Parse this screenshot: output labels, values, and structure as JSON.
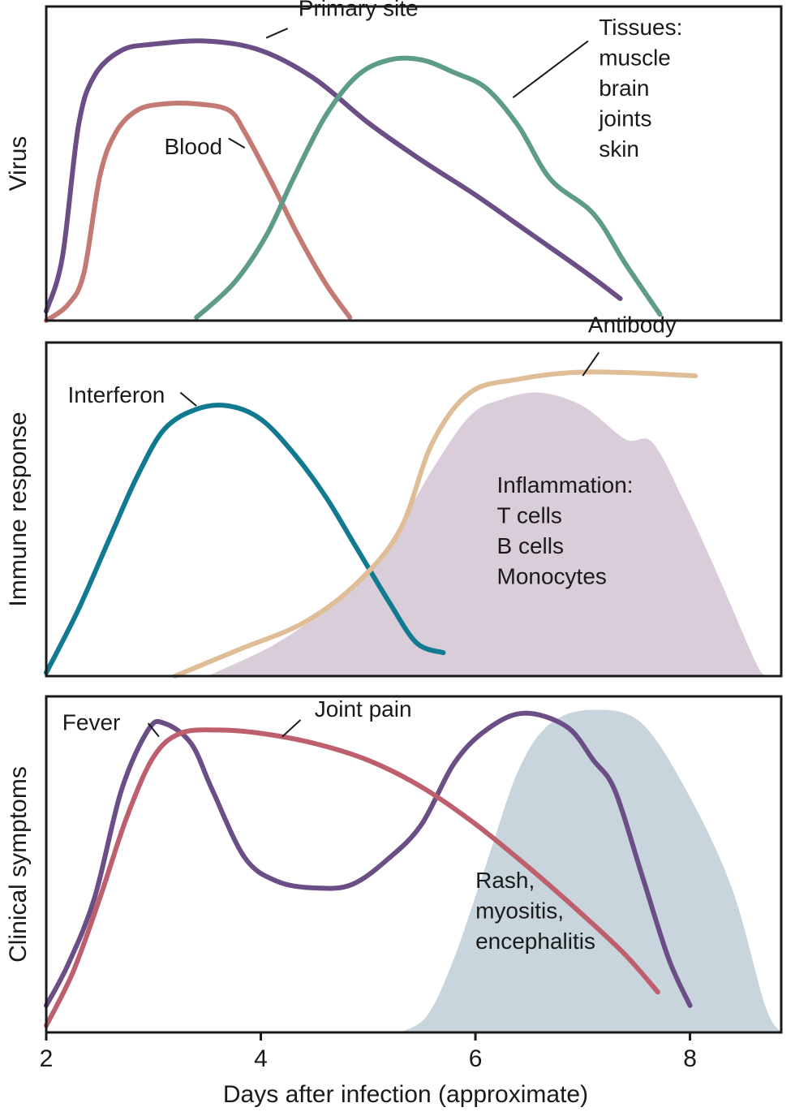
{
  "chart_data": {
    "type": "line",
    "xlabel": "Days after infection (approximate)",
    "x_ticks": [
      "2",
      "4",
      "6",
      "8"
    ],
    "xlim": [
      2,
      8.85
    ],
    "panels": [
      {
        "id": "virus",
        "ylabel": "Virus",
        "ylim": [
          0,
          1
        ],
        "series": [
          {
            "name": "Primary site",
            "color": "#6b4e86",
            "points": [
              [
                2.0,
                0.03
              ],
              [
                2.15,
                0.2
              ],
              [
                2.3,
                0.62
              ],
              [
                2.45,
                0.78
              ],
              [
                2.7,
                0.86
              ],
              [
                3.0,
                0.88
              ],
              [
                3.5,
                0.89
              ],
              [
                4.0,
                0.86
              ],
              [
                4.5,
                0.77
              ],
              [
                5.0,
                0.63
              ],
              [
                5.5,
                0.51
              ],
              [
                6.0,
                0.4
              ],
              [
                6.5,
                0.28
              ],
              [
                7.0,
                0.16
              ],
              [
                7.35,
                0.07
              ]
            ],
            "label": "Primary site",
            "label_anchor": [
              4.35,
              0.97
            ],
            "leader": [
              [
                4.05,
                0.9
              ],
              [
                4.25,
                0.93
              ]
            ]
          },
          {
            "name": "Blood",
            "color": "#c47a74",
            "points": [
              [
                2.0,
                0.0
              ],
              [
                2.2,
                0.05
              ],
              [
                2.35,
                0.15
              ],
              [
                2.5,
                0.46
              ],
              [
                2.65,
                0.6
              ],
              [
                2.85,
                0.67
              ],
              [
                3.1,
                0.69
              ],
              [
                3.4,
                0.69
              ],
              [
                3.7,
                0.67
              ],
              [
                3.85,
                0.6
              ],
              [
                4.1,
                0.44
              ],
              [
                4.35,
                0.27
              ],
              [
                4.6,
                0.12
              ],
              [
                4.83,
                0.01
              ]
            ],
            "label": "Blood",
            "label_anchor": [
              3.1,
              0.53
            ],
            "leader": [
              [
                3.85,
                0.55
              ],
              [
                3.7,
                0.58
              ]
            ]
          },
          {
            "name": "Tissues",
            "color": "#5e9c8a",
            "points": [
              [
                3.4,
                0.01
              ],
              [
                3.75,
                0.12
              ],
              [
                4.05,
                0.27
              ],
              [
                4.3,
                0.45
              ],
              [
                4.6,
                0.65
              ],
              [
                4.9,
                0.78
              ],
              [
                5.2,
                0.83
              ],
              [
                5.5,
                0.83
              ],
              [
                5.8,
                0.79
              ],
              [
                6.1,
                0.74
              ],
              [
                6.4,
                0.62
              ],
              [
                6.7,
                0.45
              ],
              [
                7.1,
                0.34
              ],
              [
                7.4,
                0.18
              ],
              [
                7.72,
                0.02
              ]
            ],
            "label": [
              "Tissues:",
              "muscle",
              "brain",
              "joints",
              "skin"
            ],
            "label_anchor": [
              7.15,
              0.91
            ],
            "leader": [
              [
                6.35,
                0.71
              ],
              [
                7.05,
                0.89
              ]
            ]
          }
        ]
      },
      {
        "id": "immune",
        "ylabel": "Immune response",
        "ylim": [
          0,
          1
        ],
        "series": [
          {
            "name": "Interferon",
            "color": "#117a91",
            "points": [
              [
                2.0,
                0.01
              ],
              [
                2.3,
                0.2
              ],
              [
                2.6,
                0.42
              ],
              [
                2.85,
                0.6
              ],
              [
                3.1,
                0.74
              ],
              [
                3.4,
                0.8
              ],
              [
                3.7,
                0.81
              ],
              [
                4.0,
                0.77
              ],
              [
                4.3,
                0.67
              ],
              [
                4.6,
                0.54
              ],
              [
                4.9,
                0.38
              ],
              [
                5.2,
                0.22
              ],
              [
                5.45,
                0.1
              ],
              [
                5.7,
                0.07
              ]
            ],
            "label": "Interferon",
            "label_anchor": [
              2.2,
              0.82
            ],
            "leader": [
              [
                3.4,
                0.81
              ],
              [
                3.25,
                0.85
              ]
            ]
          },
          {
            "name": "Antibody",
            "color": "#dfbe97",
            "points": [
              [
                3.2,
                0.0
              ],
              [
                3.8,
                0.08
              ],
              [
                4.4,
                0.16
              ],
              [
                4.9,
                0.28
              ],
              [
                5.3,
                0.44
              ],
              [
                5.6,
                0.7
              ],
              [
                5.95,
                0.85
              ],
              [
                6.4,
                0.89
              ],
              [
                6.9,
                0.91
              ],
              [
                7.4,
                0.91
              ],
              [
                8.05,
                0.9
              ]
            ],
            "label": "Antibody",
            "label_anchor": [
              7.05,
              1.03
            ],
            "leader": [
              [
                7.0,
                0.9
              ],
              [
                7.15,
                0.97
              ]
            ]
          },
          {
            "name": "Inflammation",
            "color": "#d9cdd9",
            "points": [
              [
                3.5,
                0.0
              ],
              [
                4.1,
                0.09
              ],
              [
                4.6,
                0.2
              ],
              [
                5.1,
                0.35
              ],
              [
                5.6,
                0.62
              ],
              [
                5.95,
                0.78
              ],
              [
                6.25,
                0.83
              ],
              [
                6.6,
                0.85
              ],
              [
                7.0,
                0.81
              ],
              [
                7.4,
                0.71
              ],
              [
                7.65,
                0.7
              ],
              [
                7.95,
                0.52
              ],
              [
                8.25,
                0.31
              ],
              [
                8.6,
                0.05
              ],
              [
                8.7,
                0.0
              ]
            ],
            "label": [
              "Inflammation:",
              "T cells",
              "B cells",
              "Monocytes"
            ],
            "label_anchor": [
              6.2,
              0.55
            ]
          }
        ]
      },
      {
        "id": "symptoms",
        "ylabel": "Clinical symptoms",
        "ylim": [
          0,
          1
        ],
        "series": [
          {
            "name": "Fever",
            "color": "#6b4e86",
            "points": [
              [
                2.0,
                0.08
              ],
              [
                2.2,
                0.2
              ],
              [
                2.45,
                0.4
              ],
              [
                2.7,
                0.72
              ],
              [
                2.95,
                0.9
              ],
              [
                3.1,
                0.92
              ],
              [
                3.35,
                0.86
              ],
              [
                3.55,
                0.72
              ],
              [
                3.85,
                0.52
              ],
              [
                4.15,
                0.45
              ],
              [
                4.5,
                0.43
              ],
              [
                4.85,
                0.44
              ],
              [
                5.2,
                0.52
              ],
              [
                5.5,
                0.62
              ],
              [
                5.8,
                0.8
              ],
              [
                6.1,
                0.9
              ],
              [
                6.45,
                0.95
              ],
              [
                6.85,
                0.91
              ],
              [
                7.1,
                0.81
              ],
              [
                7.3,
                0.72
              ],
              [
                7.55,
                0.47
              ],
              [
                7.8,
                0.22
              ],
              [
                8.0,
                0.08
              ]
            ],
            "label": "Fever",
            "label_anchor": [
              2.15,
              0.9
            ],
            "leader": [
              [
                3.05,
                0.88
              ],
              [
                2.95,
                0.92
              ]
            ]
          },
          {
            "name": "Joint pain",
            "color": "#bd5f6d",
            "points": [
              [
                2.0,
                0.02
              ],
              [
                2.25,
                0.18
              ],
              [
                2.5,
                0.4
              ],
              [
                2.75,
                0.64
              ],
              [
                3.0,
                0.82
              ],
              [
                3.25,
                0.89
              ],
              [
                3.6,
                0.9
              ],
              [
                4.0,
                0.89
              ],
              [
                4.5,
                0.86
              ],
              [
                5.0,
                0.81
              ],
              [
                5.5,
                0.73
              ],
              [
                6.0,
                0.62
              ],
              [
                6.5,
                0.49
              ],
              [
                7.0,
                0.35
              ],
              [
                7.4,
                0.23
              ],
              [
                7.7,
                0.12
              ]
            ],
            "label": "Joint pain",
            "label_anchor": [
              4.5,
              0.94
            ],
            "leader": [
              [
                4.2,
                0.88
              ],
              [
                4.37,
                0.93
              ]
            ]
          },
          {
            "name": "Rash",
            "color": "#c9d5dc",
            "points": [
              [
                5.3,
                0.0
              ],
              [
                5.55,
                0.05
              ],
              [
                5.8,
                0.22
              ],
              [
                6.1,
                0.5
              ],
              [
                6.4,
                0.78
              ],
              [
                6.7,
                0.92
              ],
              [
                7.1,
                0.96
              ],
              [
                7.55,
                0.92
              ],
              [
                8.0,
                0.7
              ],
              [
                8.4,
                0.42
              ],
              [
                8.7,
                0.08
              ],
              [
                8.85,
                0.0
              ]
            ],
            "label": [
              "Rash,",
              "myositis,",
              "encephalitis"
            ],
            "label_anchor": [
              6.0,
              0.43
            ]
          }
        ]
      }
    ]
  }
}
